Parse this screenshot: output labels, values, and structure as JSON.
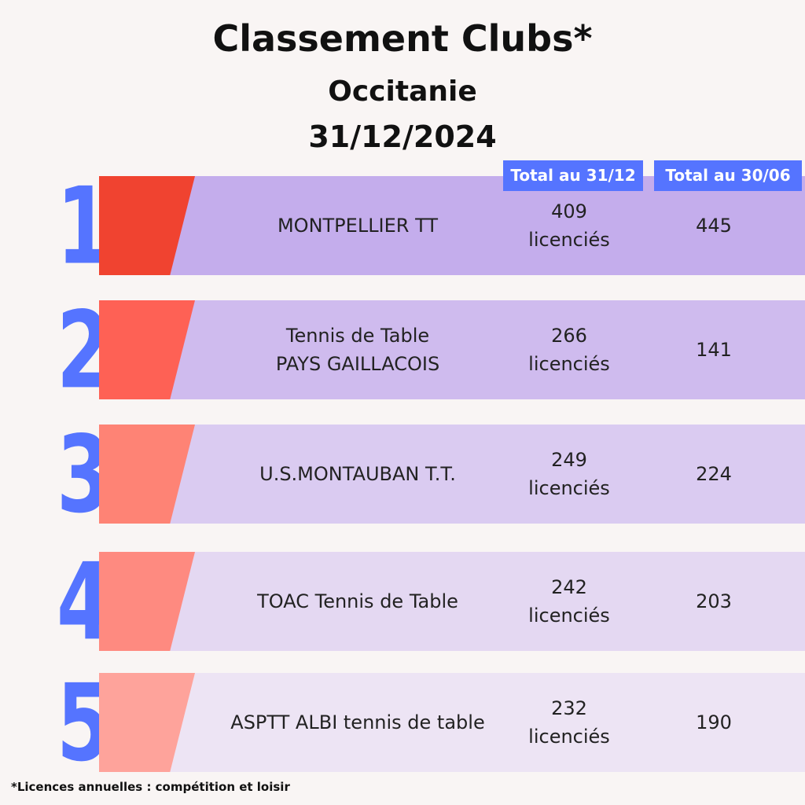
{
  "header": {
    "title": "Classement Clubs*",
    "region": "Occitanie",
    "date": "31/12/2024"
  },
  "columns": {
    "total_31_12": "Total au 31/12",
    "total_30_06": "Total au 30/06"
  },
  "colors": {
    "numeral": "#5574ff",
    "badge": "#5574ff"
  },
  "rows": [
    {
      "rank": "1",
      "name_line1": "MONTPELLIER TT",
      "name_line2": "",
      "total_31_12": "409",
      "unit": "licenciés",
      "total_30_06": "445",
      "accent": "#f04330",
      "bg": "#c4adec"
    },
    {
      "rank": "2",
      "name_line1": "Tennis de Table",
      "name_line2": "PAYS GAILLACOIS",
      "total_31_12": "266",
      "unit": "licenciés",
      "total_30_06": "141",
      "accent": "#fe6155",
      "bg": "#cfbbee"
    },
    {
      "rank": "3",
      "name_line1": "U.S.MONTAUBAN T.T.",
      "name_line2": "",
      "total_31_12": "249",
      "unit": "licenciés",
      "total_30_06": "224",
      "accent": "#fe8375",
      "bg": "#dacbf1"
    },
    {
      "rank": "4",
      "name_line1": "TOAC Tennis de Table",
      "name_line2": "",
      "total_31_12": "242",
      "unit": "licenciés",
      "total_30_06": "203",
      "accent": "#fe8a80",
      "bg": "#e4d8f2"
    },
    {
      "rank": "5",
      "name_line1": "ASPTT ALBI tennis de table",
      "name_line2": "",
      "total_31_12": "232",
      "unit": "licenciés",
      "total_30_06": "190",
      "accent": "#fea39b",
      "bg": "#ede4f4"
    }
  ],
  "footnote": "*Licences annuelles : compétition et loisir"
}
